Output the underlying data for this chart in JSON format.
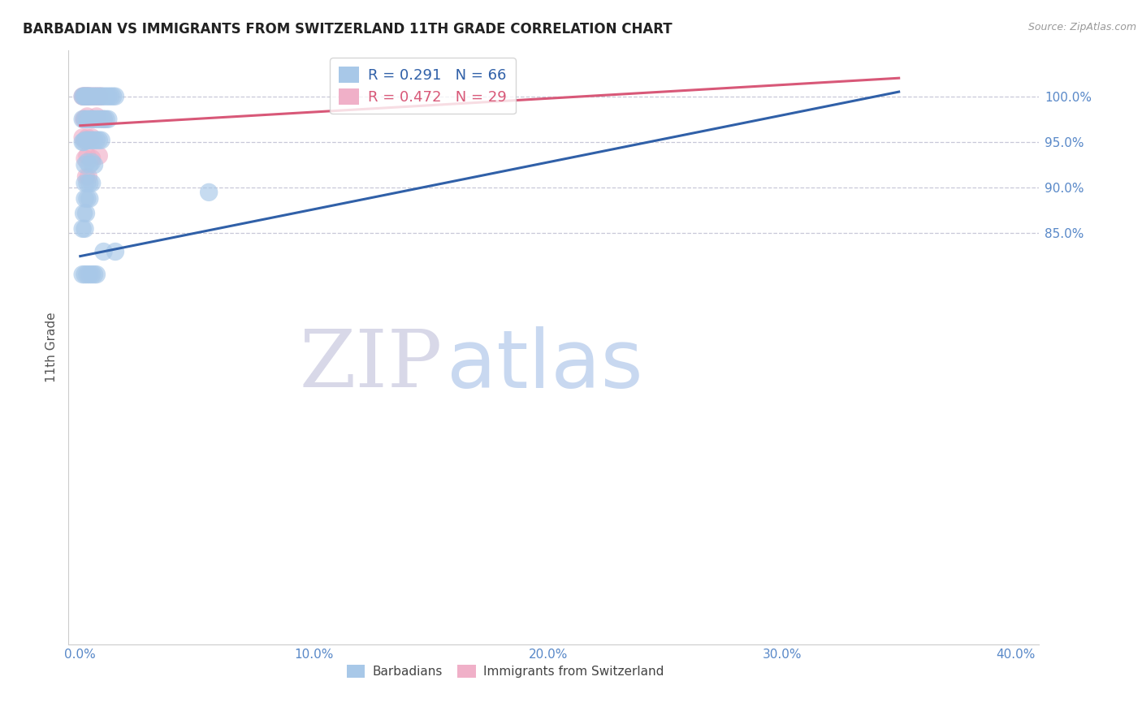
{
  "title": "BARBADIAN VS IMMIGRANTS FROM SWITZERLAND 11TH GRADE CORRELATION CHART",
  "source": "Source: ZipAtlas.com",
  "ylabel": "11th Grade",
  "blue_R": 0.291,
  "blue_N": 66,
  "pink_R": 0.472,
  "pink_N": 29,
  "blue_color": "#a8c8e8",
  "pink_color": "#f0b0c8",
  "blue_line_color": "#3060a8",
  "pink_line_color": "#d85878",
  "grid_color": "#c8c8d8",
  "tick_color": "#5888c8",
  "watermark_ZIP": "ZIP",
  "watermark_atlas": "atlas",
  "watermark_ZIP_color": "#d8d8e8",
  "watermark_atlas_color": "#c8d8f0",
  "legend1_label": "Barbadians",
  "legend2_label": "Immigrants from Switzerland",
  "blue_legend_label": "R = 0.291   N = 66",
  "pink_legend_label": "R = 0.472   N = 29",
  "x_ticks": [
    0.0,
    10.0,
    20.0,
    30.0,
    40.0
  ],
  "x_tick_labels": [
    "0.0%",
    "10.0%",
    "20.0%",
    "30.0%",
    "40.0%"
  ],
  "y_ticks": [
    85.0,
    90.0,
    95.0,
    100.0
  ],
  "y_tick_labels": [
    "85.0%",
    "90.0%",
    "95.0%",
    "100.0%"
  ],
  "xlim": [
    -0.5,
    41.0
  ],
  "ylim": [
    40.0,
    105.0
  ],
  "blue_x": [
    0.1,
    0.15,
    0.2,
    0.25,
    0.3,
    0.35,
    0.4,
    0.5,
    0.6,
    0.7,
    0.8,
    0.9,
    1.0,
    1.1,
    1.2,
    1.3,
    1.4,
    1.5,
    0.1,
    0.2,
    0.3,
    0.4,
    0.5,
    0.6,
    0.7,
    0.8,
    0.9,
    1.0,
    1.1,
    1.2,
    0.1,
    0.15,
    0.2,
    0.3,
    0.4,
    0.5,
    0.6,
    0.7,
    0.8,
    0.9,
    0.2,
    0.3,
    0.4,
    0.5,
    0.6,
    0.2,
    0.3,
    0.4,
    0.5,
    0.2,
    0.3,
    0.4,
    0.15,
    0.25,
    0.1,
    0.2,
    5.5,
    1.0,
    1.5,
    0.1,
    0.2,
    0.3,
    0.4,
    0.5,
    0.6,
    0.7
  ],
  "blue_y": [
    100.0,
    100.0,
    100.0,
    100.0,
    100.0,
    100.0,
    100.0,
    100.0,
    100.0,
    100.0,
    100.0,
    100.0,
    100.0,
    100.0,
    100.0,
    100.0,
    100.0,
    100.0,
    97.5,
    97.5,
    97.5,
    97.5,
    97.5,
    97.5,
    97.5,
    97.5,
    97.5,
    97.5,
    97.5,
    97.5,
    95.0,
    95.0,
    95.2,
    95.2,
    95.2,
    95.2,
    95.2,
    95.2,
    95.2,
    95.2,
    92.5,
    92.8,
    92.5,
    92.8,
    92.5,
    90.5,
    90.5,
    90.5,
    90.5,
    88.8,
    88.8,
    88.8,
    87.2,
    87.2,
    85.5,
    85.5,
    89.5,
    83.0,
    83.0,
    80.5,
    80.5,
    80.5,
    80.5,
    80.5,
    80.5,
    80.5
  ],
  "pink_x": [
    0.1,
    0.15,
    0.2,
    0.25,
    0.3,
    0.35,
    0.4,
    0.5,
    0.6,
    0.7,
    0.8,
    0.9,
    0.15,
    0.2,
    0.3,
    0.5,
    0.7,
    1.0,
    0.1,
    0.2,
    0.3,
    0.4,
    0.5,
    0.2,
    0.3,
    0.5,
    0.8,
    0.25,
    0.35
  ],
  "pink_y": [
    100.0,
    100.0,
    100.0,
    100.0,
    100.0,
    100.0,
    100.0,
    100.0,
    100.0,
    100.0,
    100.0,
    100.0,
    97.5,
    97.5,
    97.8,
    97.5,
    97.8,
    97.5,
    95.5,
    95.2,
    95.5,
    95.2,
    95.5,
    93.2,
    93.5,
    93.2,
    93.5,
    91.2,
    91.2
  ],
  "blue_trendline": [
    [
      0.0,
      82.5
    ],
    [
      35.0,
      100.5
    ]
  ],
  "pink_trendline": [
    [
      0.0,
      96.8
    ],
    [
      35.0,
      102.0
    ]
  ]
}
